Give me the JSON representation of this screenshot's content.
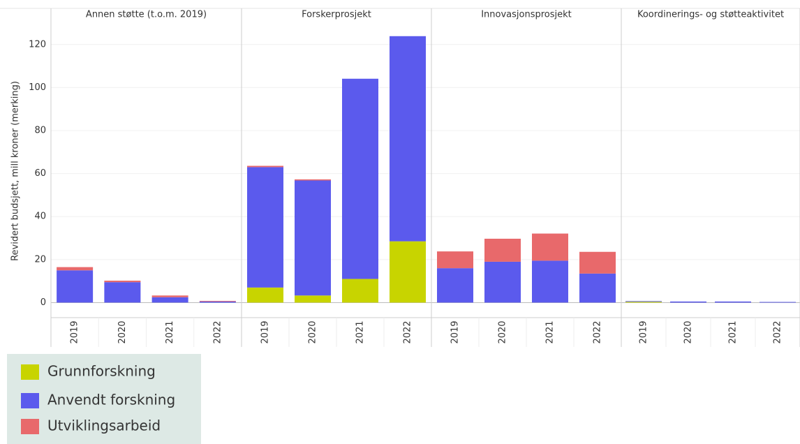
{
  "chart_data": {
    "type": "bar",
    "stacked": true,
    "y_label": "Revidert budsjett, mill kroner (merking)",
    "facets": [
      "Annen støtte (t.o.m. 2019)",
      "Forskerprosjekt",
      "Innovasjonsprosjekt",
      "Koordinerings- og støtteaktivitet"
    ],
    "categories": [
      "2019",
      "2020",
      "2021",
      "2022"
    ],
    "series": [
      {
        "name": "Grunnforskning",
        "color": "#c8d400",
        "values": [
          [
            0,
            0,
            0,
            0
          ],
          [
            7,
            3.3,
            11,
            28.5
          ],
          [
            0,
            0,
            0,
            0
          ],
          [
            0.4,
            0,
            0,
            0
          ]
        ]
      },
      {
        "name": "Anvendt forskning",
        "color": "#5b5aed",
        "values": [
          [
            15,
            9.5,
            2.5,
            0.5
          ],
          [
            56,
            53.5,
            93.1,
            95.4
          ],
          [
            16,
            19,
            19.5,
            13.5
          ],
          [
            0.3,
            0.5,
            0.5,
            0.3
          ]
        ]
      },
      {
        "name": "Utviklingsarbeid",
        "color": "#e8696b",
        "values": [
          [
            1.5,
            0.7,
            0.8,
            0.3
          ],
          [
            0.6,
            0.5,
            0,
            0
          ],
          [
            7.8,
            10.7,
            12.6,
            10.1
          ],
          [
            0,
            0,
            0,
            0
          ]
        ]
      }
    ],
    "ylim": [
      -7,
      130
    ],
    "yticks": [
      0,
      20,
      40,
      60,
      80,
      100,
      120
    ],
    "grid": true
  }
}
